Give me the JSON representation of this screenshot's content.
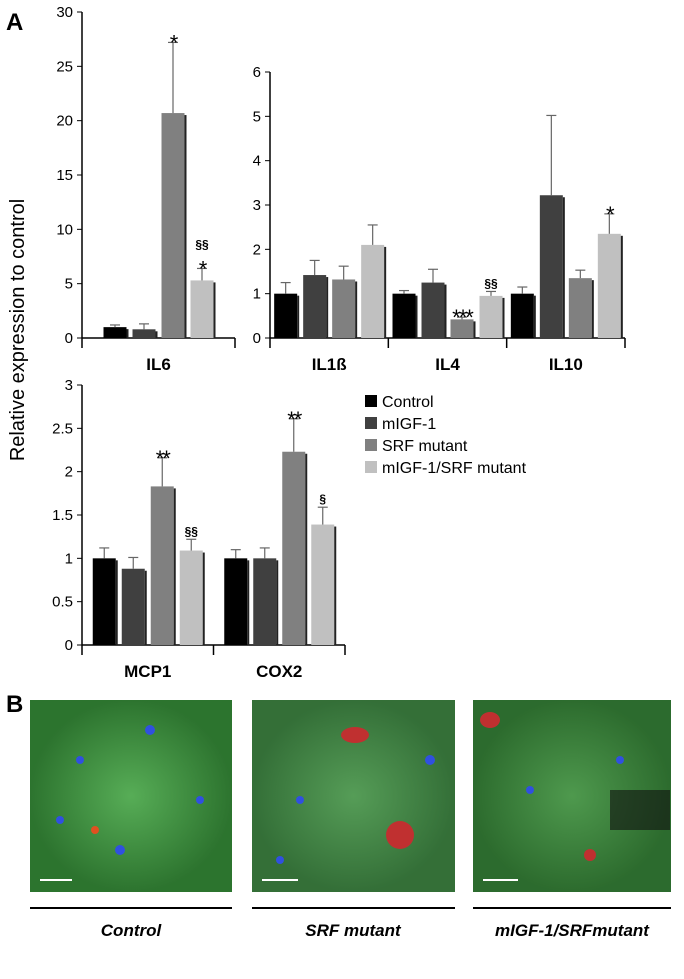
{
  "panel_a": {
    "label": "A",
    "y_axis_label": "Relative expression to control"
  },
  "chart_data": [
    {
      "type": "bar",
      "categories": [
        "IL6"
      ],
      "ylim": [
        0,
        30
      ],
      "yticks": [
        0,
        5,
        10,
        15,
        20,
        25,
        30
      ],
      "series": [
        {
          "name": "Control",
          "color": "#000000",
          "values": [
            1.0
          ],
          "errors": [
            0.2
          ],
          "stars": [
            null
          ],
          "sections": [
            null
          ]
        },
        {
          "name": "mIGF-1",
          "color": "#404040",
          "values": [
            0.8
          ],
          "errors": [
            0.5
          ],
          "stars": [
            null
          ],
          "sections": [
            null
          ]
        },
        {
          "name": "SRF mutant",
          "color": "#808080",
          "values": [
            20.7
          ],
          "errors": [
            6.5
          ],
          "stars": [
            "*"
          ],
          "sections": [
            null
          ]
        },
        {
          "name": "mIGF-1/SRF mutant",
          "color": "#c0c0c0",
          "values": [
            5.3
          ],
          "errors": [
            1.1
          ],
          "stars": [
            "*"
          ],
          "sections": [
            "§§"
          ]
        }
      ]
    },
    {
      "type": "bar",
      "categories": [
        "IL1ß",
        "IL4",
        "IL10"
      ],
      "ylim": [
        0,
        6
      ],
      "yticks": [
        0,
        1,
        2,
        3,
        4,
        5,
        6
      ],
      "series": [
        {
          "name": "Control",
          "color": "#000000",
          "values": [
            1.0,
            1.0,
            1.0
          ],
          "errors": [
            0.25,
            0.07,
            0.15
          ],
          "stars": [
            null,
            null,
            null
          ],
          "sections": [
            null,
            null,
            null
          ]
        },
        {
          "name": "mIGF-1",
          "color": "#404040",
          "values": [
            1.42,
            1.25,
            3.22
          ],
          "errors": [
            0.33,
            0.3,
            1.8
          ],
          "stars": [
            null,
            null,
            null
          ],
          "sections": [
            null,
            null,
            null
          ]
        },
        {
          "name": "SRF mutant",
          "color": "#808080",
          "values": [
            1.32,
            0.42,
            1.35
          ],
          "errors": [
            0.3,
            0.05,
            0.18
          ],
          "stars": [
            null,
            "***",
            null
          ],
          "sections": [
            null,
            null,
            null
          ]
        },
        {
          "name": "mIGF-1/SRF mutant",
          "color": "#c0c0c0",
          "values": [
            2.1,
            0.95,
            2.35
          ],
          "errors": [
            0.45,
            0.1,
            0.45
          ],
          "stars": [
            null,
            null,
            "*"
          ],
          "sections": [
            null,
            "§§",
            null
          ]
        }
      ]
    },
    {
      "type": "bar",
      "categories": [
        "MCP1",
        "COX2"
      ],
      "ylim": [
        0,
        3
      ],
      "yticks": [
        0,
        0.5,
        1,
        1.5,
        2,
        2.5,
        3
      ],
      "legend": "right",
      "series": [
        {
          "name": "Control",
          "color": "#000000",
          "values": [
            1.0,
            1.0
          ],
          "errors": [
            0.12,
            0.1
          ],
          "stars": [
            null,
            null
          ],
          "sections": [
            null,
            null
          ]
        },
        {
          "name": "mIGF-1",
          "color": "#404040",
          "values": [
            0.88,
            1.0
          ],
          "errors": [
            0.13,
            0.12
          ],
          "stars": [
            null,
            null
          ],
          "sections": [
            null,
            null
          ]
        },
        {
          "name": "SRF mutant",
          "color": "#808080",
          "values": [
            1.83,
            2.23
          ],
          "errors": [
            0.33,
            0.38
          ],
          "stars": [
            "**",
            "**"
          ],
          "sections": [
            null,
            null
          ]
        },
        {
          "name": "mIGF-1/SRF mutant",
          "color": "#c0c0c0",
          "values": [
            1.09,
            1.39
          ],
          "errors": [
            0.13,
            0.2
          ],
          "stars": [
            null,
            null
          ],
          "sections": [
            "§§",
            "§"
          ]
        }
      ]
    }
  ],
  "panel_b": {
    "label": "B",
    "images": [
      {
        "caption": "Control"
      },
      {
        "caption": "SRF mutant"
      },
      {
        "caption": "mIGF-1/SRFmutant"
      }
    ]
  }
}
